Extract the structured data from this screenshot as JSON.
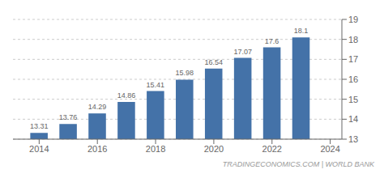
{
  "chart_data": {
    "type": "bar",
    "x": [
      2014,
      2015,
      2016,
      2017,
      2018,
      2019,
      2020,
      2021,
      2022,
      2023
    ],
    "values": [
      13.31,
      13.76,
      14.29,
      14.86,
      15.41,
      15.98,
      16.54,
      17.07,
      17.6,
      18.1
    ],
    "color": "#4472a8",
    "xlim": [
      2013.1,
      2024.4
    ],
    "xticks": [
      2014,
      2016,
      2018,
      2020,
      2022,
      2024
    ],
    "ylim": [
      13,
      19
    ],
    "yticks": [
      13,
      14,
      15,
      16,
      17,
      18,
      19
    ],
    "grid": true,
    "data_labels": true,
    "annotations": [
      "TRADINGECONOMICS.COM | WORLD BANK"
    ]
  }
}
